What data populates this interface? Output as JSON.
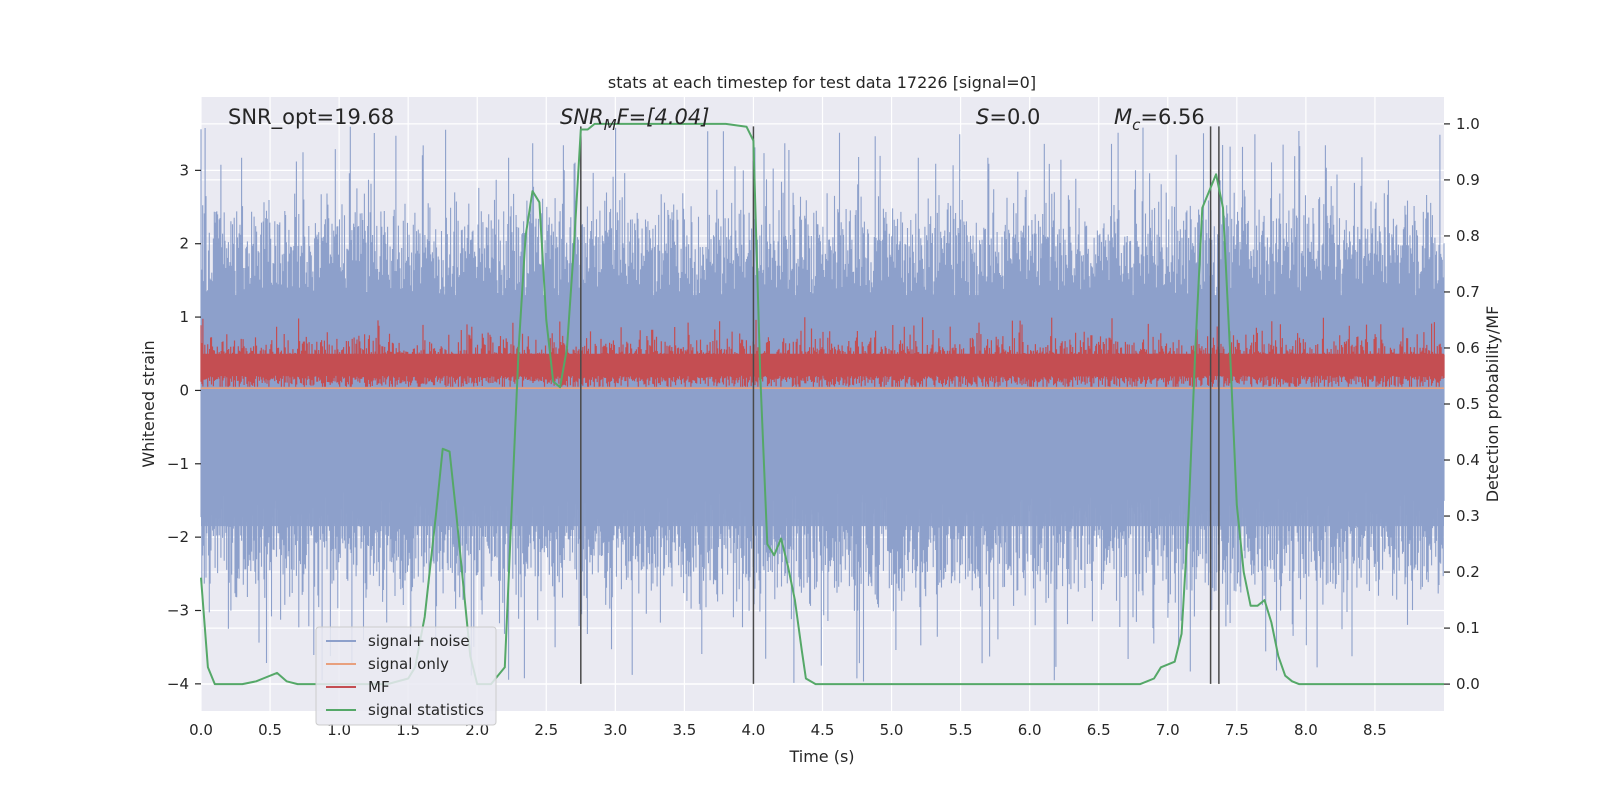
{
  "chart_data": {
    "type": "line",
    "title": "stats at each timestep for test data 17226 [signal=0]",
    "xlabel": "Time (s)",
    "ylabel_left": "Whitened strain",
    "ylabel_right": "Detection probability/MF",
    "xlim": [
      0,
      9
    ],
    "ylim_left": [
      -4.37,
      4.0
    ],
    "ylim_right": [
      -0.048,
      1.048
    ],
    "x_ticks": [
      0.0,
      0.5,
      1.0,
      1.5,
      2.0,
      2.5,
      3.0,
      3.5,
      4.0,
      4.5,
      5.0,
      5.5,
      6.0,
      6.5,
      7.0,
      7.5,
      8.0,
      8.5
    ],
    "x_tick_labels": [
      "0.0",
      "0.5",
      "1.0",
      "1.5",
      "2.0",
      "2.5",
      "3.0",
      "3.5",
      "4.0",
      "4.5",
      "5.0",
      "5.5",
      "6.0",
      "6.5",
      "7.0",
      "7.5",
      "8.0",
      "8.5"
    ],
    "y_left_ticks": [
      3,
      2,
      1,
      0,
      -1,
      -2,
      -3,
      -4
    ],
    "y_left_tick_labels": [
      "3",
      "2",
      "1",
      "0",
      "−1",
      "−2",
      "−3",
      "−4"
    ],
    "y_right_ticks": [
      1.0,
      0.9,
      0.8,
      0.7,
      0.6,
      0.5,
      0.4,
      0.3,
      0.2,
      0.1,
      0.0
    ],
    "y_right_tick_labels": [
      "1.0",
      "0.9",
      "0.8",
      "0.7",
      "0.6",
      "0.5",
      "0.4",
      "0.3",
      "0.2",
      "0.1",
      "0.0"
    ],
    "annotations": {
      "snr_opt": "SNR_opt=19.68",
      "snr_mf_main": "SNR",
      "snr_mf_sub": "M",
      "snr_mf_rest": "F=[4.04]",
      "s_main": "S",
      "s_rest": "=0.0",
      "mc_main": "M",
      "mc_sub": "c",
      "mc_rest": "=6.56"
    },
    "vertical_lines_x": [
      2.75,
      4.0,
      7.31,
      7.37
    ],
    "vertical_lines_range_left": [
      -4.0,
      3.6
    ],
    "legend": {
      "placement": "lower-left",
      "entries": [
        "signal+ noise",
        "signal only",
        "MF",
        "signal statistics"
      ]
    },
    "series": [
      {
        "name": "signal+ noise",
        "color": "#8da0cb",
        "axis": "left",
        "description_values": {
          "range": [
            -4.0,
            3.6
          ],
          "typical_band": [
            -2.5,
            2.2
          ]
        }
      },
      {
        "name": "signal only",
        "color": "#e8a07e",
        "axis": "left",
        "value": 0.03
      },
      {
        "name": "MF",
        "color": "#c44e52",
        "axis": "left",
        "typical_band": [
          0.05,
          0.7
        ]
      },
      {
        "name": "signal statistics",
        "color": "#55a868",
        "axis": "right",
        "x": [
          0.0,
          0.05,
          0.1,
          0.15,
          0.2,
          0.3,
          0.4,
          0.45,
          0.55,
          0.62,
          0.7,
          0.8,
          0.9,
          1.0,
          1.1,
          1.2,
          1.35,
          1.5,
          1.55,
          1.62,
          1.7,
          1.75,
          1.8,
          1.85,
          1.95,
          2.0,
          2.1,
          2.2,
          2.3,
          2.35,
          2.4,
          2.45,
          2.5,
          2.55,
          2.6,
          2.65,
          2.7,
          2.75,
          2.8,
          2.85,
          2.95,
          3.2,
          3.5,
          3.8,
          3.95,
          4.0,
          4.05,
          4.1,
          4.15,
          4.2,
          4.25,
          4.3,
          4.35,
          4.38,
          4.45,
          4.55,
          5.0,
          6.0,
          6.8,
          6.85,
          6.9,
          6.95,
          7.05,
          7.1,
          7.15,
          7.2,
          7.25,
          7.3,
          7.35,
          7.4,
          7.45,
          7.5,
          7.55,
          7.6,
          7.65,
          7.7,
          7.75,
          7.8,
          7.85,
          7.9,
          7.95,
          8.05,
          8.5,
          9.0
        ],
        "values": [
          0.19,
          0.03,
          0.0,
          0.0,
          0.0,
          0.0,
          0.005,
          0.01,
          0.02,
          0.005,
          0.0,
          0.0,
          0.0,
          0.0,
          0.0,
          0.0,
          0.0,
          0.01,
          0.03,
          0.12,
          0.3,
          0.42,
          0.415,
          0.3,
          0.05,
          0.0,
          0.0,
          0.03,
          0.6,
          0.8,
          0.88,
          0.86,
          0.65,
          0.54,
          0.53,
          0.6,
          0.78,
          0.99,
          0.99,
          1.0,
          1.0,
          1.0,
          1.0,
          1.0,
          0.995,
          0.97,
          0.55,
          0.25,
          0.23,
          0.26,
          0.21,
          0.15,
          0.06,
          0.01,
          0.0,
          0.0,
          0.0,
          0.0,
          0.0,
          0.005,
          0.01,
          0.03,
          0.04,
          0.09,
          0.3,
          0.6,
          0.85,
          0.88,
          0.91,
          0.85,
          0.6,
          0.32,
          0.2,
          0.14,
          0.14,
          0.15,
          0.11,
          0.05,
          0.015,
          0.005,
          0.0,
          0.0,
          0.0,
          0.0
        ]
      }
    ]
  }
}
